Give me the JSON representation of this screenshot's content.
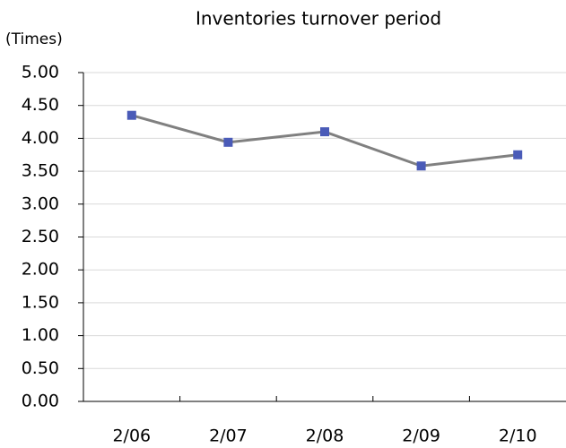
{
  "chart_data": {
    "type": "line",
    "title": "Inventories turnover period",
    "y_label": "(Times)",
    "categories": [
      "2/06",
      "2/07",
      "2/08",
      "2/09",
      "2/10"
    ],
    "series": [
      {
        "name": "Inventories turnover period",
        "color": "#808080",
        "marker_color": "#4a5bb8",
        "values": [
          4.35,
          3.94,
          4.1,
          3.58,
          3.75
        ]
      }
    ],
    "ylim": [
      0,
      5
    ],
    "yticks": [
      {
        "value": 0,
        "label": "0.00"
      },
      {
        "value": 0.5,
        "label": "0.50"
      },
      {
        "value": 1,
        "label": "1.00"
      },
      {
        "value": 1.5,
        "label": "1.50"
      },
      {
        "value": 2,
        "label": "2.00"
      },
      {
        "value": 2.5,
        "label": "2.50"
      },
      {
        "value": 3,
        "label": "3.00"
      },
      {
        "value": 3.5,
        "label": "3.50"
      },
      {
        "value": 4,
        "label": "4.00"
      },
      {
        "value": 4.5,
        "label": "4.50"
      },
      {
        "value": 5,
        "label": "5.00"
      }
    ],
    "grid": true
  }
}
